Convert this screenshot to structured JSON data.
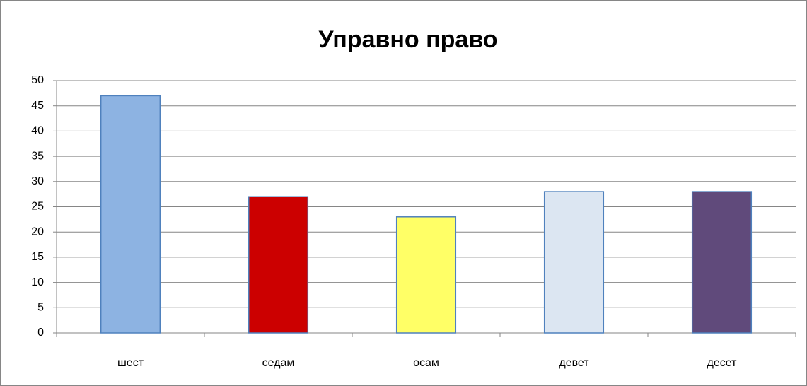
{
  "chart_data": {
    "type": "bar",
    "title": "Управно право",
    "categories": [
      "шест",
      "седам",
      "осам",
      "девет",
      "десет"
    ],
    "values": [
      47,
      27,
      23,
      28,
      28
    ],
    "colors": [
      "#8db3e2",
      "#cc0000",
      "#ffff66",
      "#dce6f2",
      "#604a7b"
    ],
    "ylim": [
      0,
      50
    ],
    "yticks": [
      0,
      5,
      10,
      15,
      20,
      25,
      30,
      35,
      40,
      45,
      50
    ],
    "grid": true
  }
}
